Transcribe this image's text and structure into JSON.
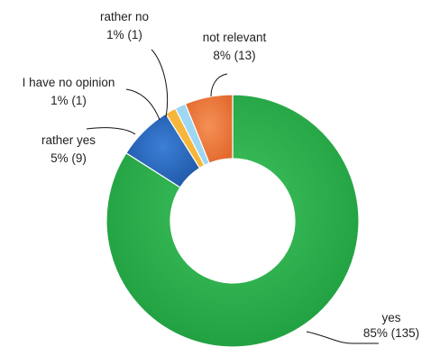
{
  "chart_data": {
    "type": "pie",
    "variant": "donut",
    "title": "",
    "legend": "none",
    "slices": [
      {
        "name": "yes",
        "label": "85% (135)",
        "percent": 85,
        "count": 135,
        "color": "#2DB24C"
      },
      {
        "name": "rather yes",
        "label": "5% (9)",
        "percent": 5,
        "count": 9,
        "color": "#2A6CC4"
      },
      {
        "name": "I have no opinion",
        "label": "1% (1)",
        "percent": 1,
        "count": 1,
        "color": "#F6B63C"
      },
      {
        "name": "rather no",
        "label": "1% (1)",
        "percent": 1,
        "count": 1,
        "color": "#9ED7F3"
      },
      {
        "name": "not relevant",
        "label": "8% (13)",
        "percent": 8,
        "count": 13,
        "color": "#F07C3E"
      }
    ]
  }
}
